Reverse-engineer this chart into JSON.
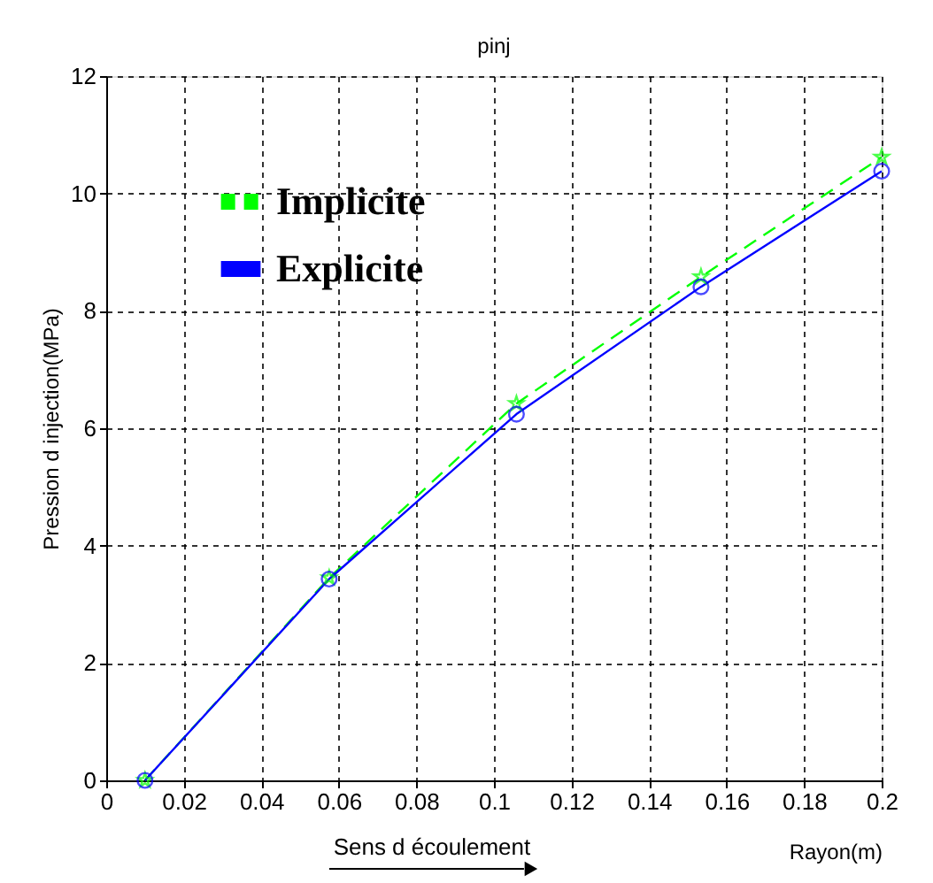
{
  "chart_data": {
    "type": "line",
    "title": "pinj",
    "xlabel": "Rayon(m)",
    "ylabel": "Pression d injection(MPa)",
    "x": [
      0.01,
      0.0575,
      0.1058,
      0.1534,
      0.2
    ],
    "series": [
      {
        "name": "Implicite",
        "color": "#00ff00",
        "values": [
          0,
          3.45,
          6.42,
          8.58,
          10.62
        ],
        "marker": "star",
        "line_style": "dashed"
      },
      {
        "name": "Explicite",
        "color": "#0000ff",
        "values": [
          0,
          3.43,
          6.24,
          8.41,
          10.38
        ],
        "marker": "circle",
        "line_style": "solid"
      }
    ],
    "xlim": [
      0,
      0.2
    ],
    "xticks": [
      0,
      0.02,
      0.04,
      0.06,
      0.08,
      0.1,
      0.12,
      0.14,
      0.16,
      0.18,
      0.2
    ],
    "ylim": [
      0,
      12
    ],
    "yticks": [
      0,
      2,
      4,
      6,
      8,
      10,
      12
    ],
    "grid": true,
    "legend": "top left",
    "annotations": [
      "Sens d écoulement"
    ]
  }
}
